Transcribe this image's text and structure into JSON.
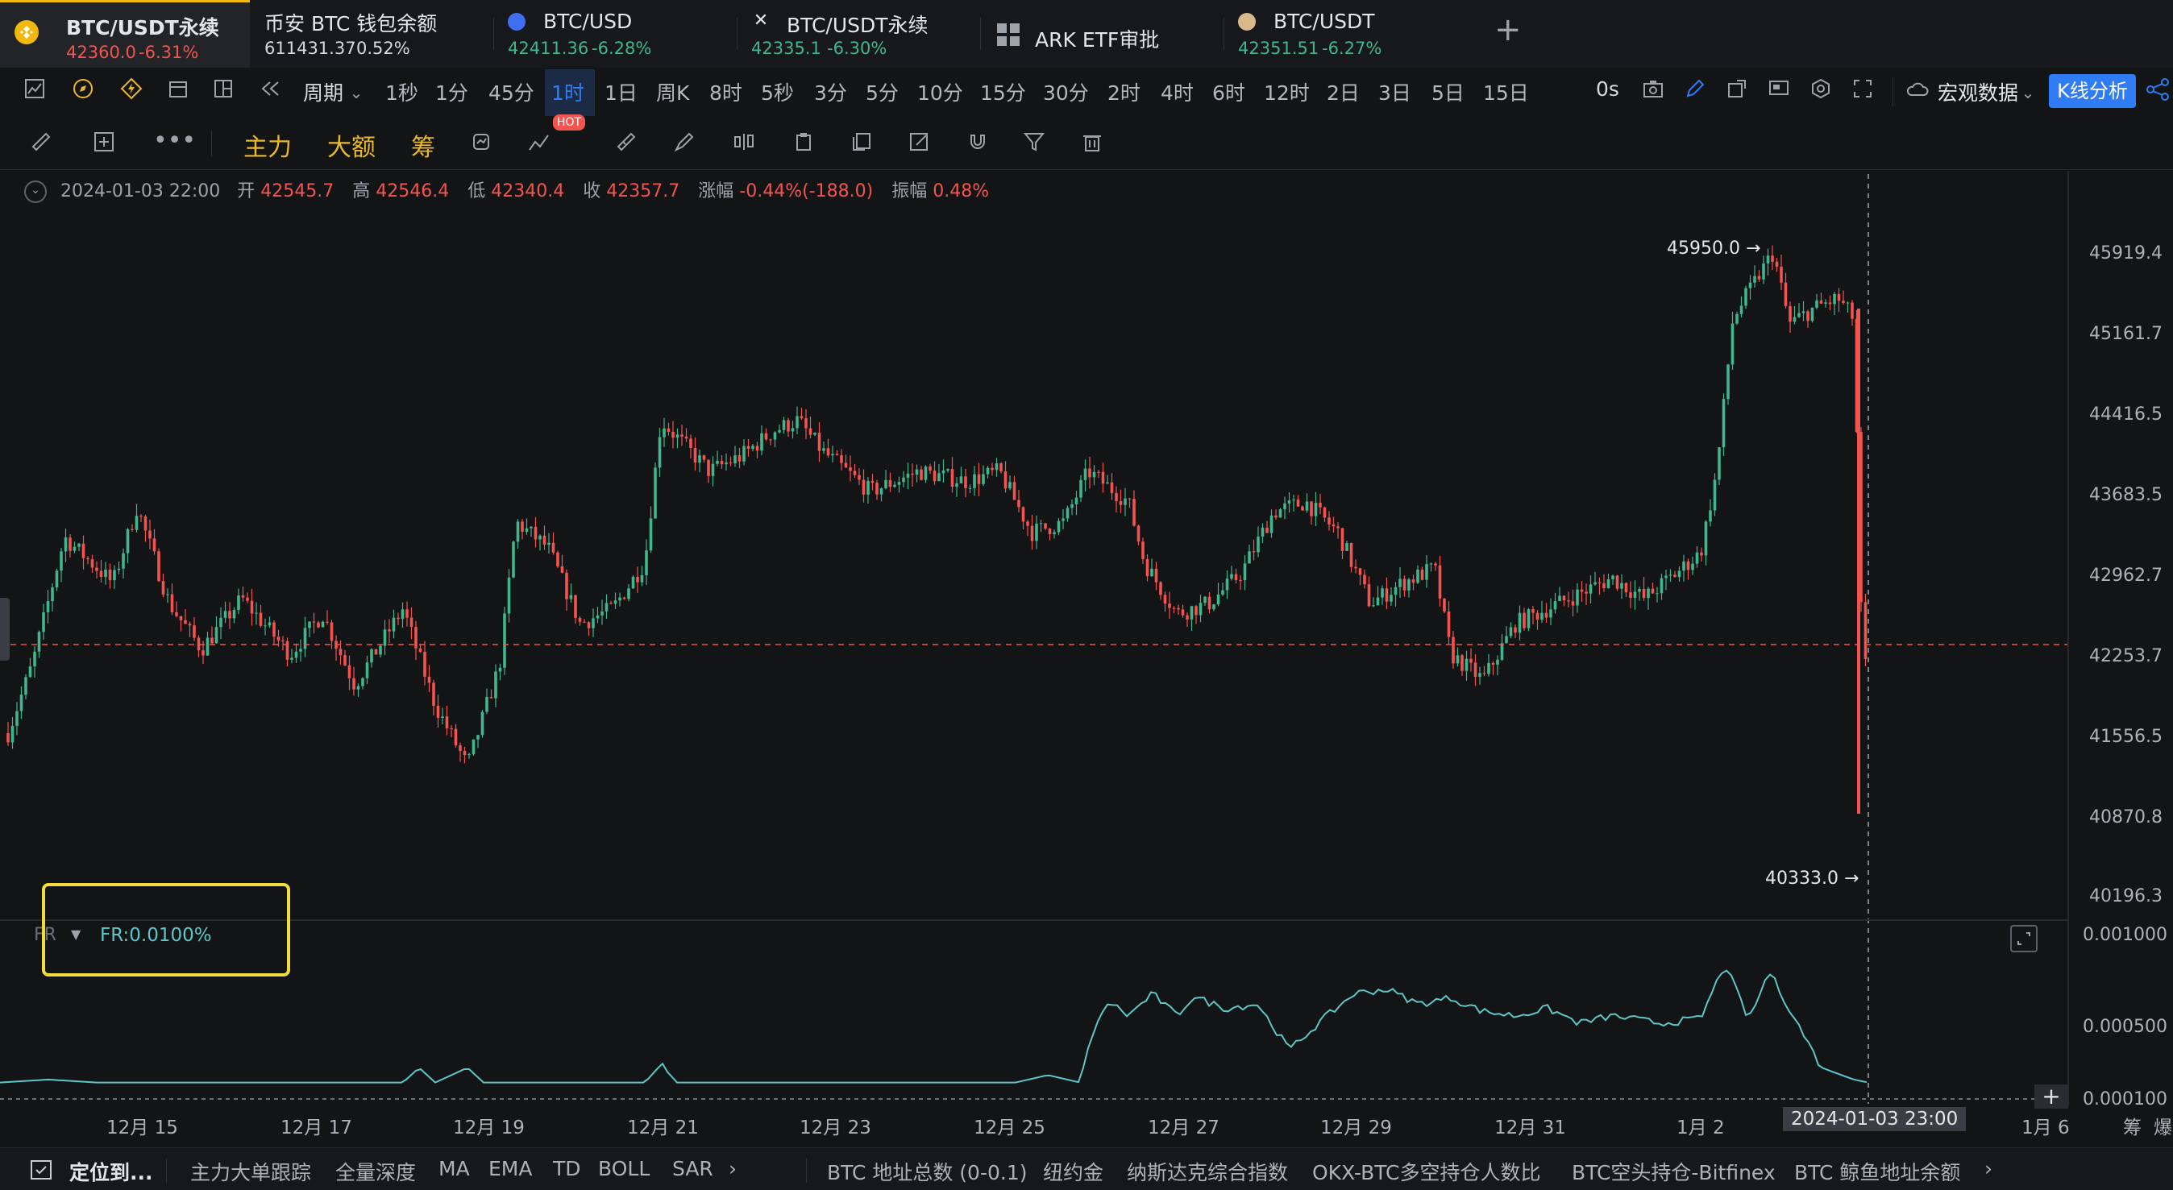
{
  "tabs": [
    {
      "name": "BTC/USDT永续",
      "price": "42360.0",
      "change": "-6.31%",
      "price_color": "#f4544f",
      "icon": "binance-icon"
    },
    {
      "name": "币安 BTC 钱包余额",
      "price": "611431.37",
      "change": "0.52%",
      "price_color": "#d6d9de",
      "icon": ""
    },
    {
      "name": "BTC/USD",
      "price": "42411.36",
      "change": "-6.28%",
      "price_color": "#3fb68b",
      "icon": "coinbase-icon"
    },
    {
      "name": "BTC/USDT永续",
      "price": "42335.1",
      "change": "-6.30%",
      "price_color": "#3fb68b",
      "icon": "exchange-icon"
    },
    {
      "name": "ARK ETF审批",
      "price": "",
      "change": "",
      "price_color": "#d6d9de",
      "icon": "grid-icon"
    },
    {
      "name": "BTC/USDT",
      "price": "42351.51",
      "change": "-6.27%",
      "price_color": "#3fb68b",
      "icon": "coin-icon"
    }
  ],
  "add_tab": "+",
  "period_label": "周期",
  "periods": [
    "1秒",
    "1分",
    "45分",
    "1时",
    "1日",
    "周K",
    "8时",
    "5秒",
    "3分",
    "5分",
    "10分",
    "15分",
    "30分",
    "2时",
    "4时",
    "6时",
    "12时",
    "2日",
    "3日",
    "5日",
    "15日"
  ],
  "active_period": "1时",
  "toolbar_right": {
    "timer": "0s",
    "macro": "宏观数据",
    "kline": "K线分析"
  },
  "row3": {
    "main": "主力",
    "large": "大额",
    "chip": "筹",
    "hot": "HOT"
  },
  "ohlc": {
    "datetime": "2024-01-03 22:00",
    "open_label": "开",
    "open": "42545.7",
    "high_label": "高",
    "high": "42546.4",
    "low_label": "低",
    "low": "42340.4",
    "close_label": "收",
    "close": "42357.7",
    "change_label": "涨幅",
    "change": "-0.44%(-188.0)",
    "amp_label": "振幅",
    "amp": "0.48%"
  },
  "price_axis": [
    "45919.4",
    "45161.7",
    "44416.5",
    "43683.5",
    "42962.7",
    "42253.7",
    "41556.5",
    "40870.8",
    "40196.3"
  ],
  "fr_axis": [
    "0.001000",
    "0.000500",
    "0.000100"
  ],
  "annotations": {
    "high": "45950.0 →",
    "low": "40333.0 →"
  },
  "indicator": {
    "name": "FR",
    "value": "FR:0.0100%"
  },
  "x_axis": [
    "12月 15",
    "12月 17",
    "12月 19",
    "12月 21",
    "12月 23",
    "12月 25",
    "12月 27",
    "12月 29",
    "12月 31",
    "1月 2",
    "1月 6"
  ],
  "crosshair_label": "2024-01-03 23:00",
  "right_edge": [
    "筹",
    "爆"
  ],
  "bottom": {
    "locate": "定位到...",
    "left_items": [
      "主力大单跟踪",
      "全量深度",
      "MA",
      "EMA",
      "TD",
      "BOLL",
      "SAR"
    ],
    "right_items": [
      "BTC 地址总数 (0-0.1)",
      "纽约金",
      "纳斯达克综合指数",
      "OKX-BTC多空持仓人数比",
      "BTC空头持仓-Bitfinex",
      "BTC 鲸鱼地址余额"
    ]
  },
  "colors": {
    "up": "#3fb68b",
    "down": "#f4544f",
    "accent": "#2f7cf6",
    "gold": "#e8b92b",
    "fr_line": "#5ec6c6",
    "highlight_box": "#f2dc3a"
  },
  "chart_data": {
    "type": "candlestick+line",
    "price_range": [
      40000,
      46100
    ],
    "high": 45950.0,
    "low": 40333.0,
    "last_close": 42357.7,
    "fr_range": [
      0,
      0.0011
    ]
  }
}
